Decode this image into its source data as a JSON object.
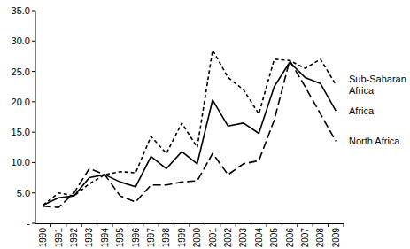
{
  "chart_data": {
    "type": "line",
    "categories": [
      "1990",
      "1991",
      "1992",
      "1993",
      "1994",
      "1995",
      "1996",
      "1997",
      "1998",
      "1999",
      "2000",
      "2001",
      "2002",
      "2003",
      "2004",
      "2005",
      "2006",
      "2007",
      "2008",
      "2009"
    ],
    "series": [
      {
        "name": "Sub-Saharan Africa",
        "color": "#000000",
        "line_style": "short_dash",
        "values": [
          3.0,
          5.0,
          4.5,
          6.5,
          8.0,
          8.5,
          8.3,
          14.3,
          11.5,
          16.5,
          12.5,
          28.5,
          24.0,
          22.0,
          18.0,
          27.0,
          26.8,
          25.5,
          27.0,
          22.8
        ]
      },
      {
        "name": "Africa",
        "color": "#000000",
        "line_style": "solid",
        "values": [
          3.0,
          4.2,
          4.5,
          7.5,
          8.0,
          6.8,
          6.0,
          11.0,
          9.0,
          11.8,
          9.8,
          20.3,
          16.0,
          16.5,
          14.8,
          22.5,
          26.5,
          24.0,
          23.0,
          18.5
        ]
      },
      {
        "name": "North Africa",
        "color": "#000000",
        "line_style": "long_dash",
        "values": [
          2.8,
          2.6,
          5.0,
          9.0,
          8.0,
          4.5,
          3.5,
          6.3,
          6.3,
          6.8,
          7.0,
          11.5,
          8.0,
          9.8,
          10.3,
          17.0,
          26.8,
          22.5,
          18.0,
          13.5
        ]
      }
    ],
    "ylim": [
      0,
      35
    ],
    "yticks": [
      {
        "value": 0,
        "label": "-"
      },
      {
        "value": 5,
        "label": "5.0"
      },
      {
        "value": 10,
        "label": "10.0"
      },
      {
        "value": 15,
        "label": "15.0"
      },
      {
        "value": 20,
        "label": "20.0"
      },
      {
        "value": 25,
        "label": "25.0"
      },
      {
        "value": 30,
        "label": "30.0"
      },
      {
        "value": 35,
        "label": "35.0"
      }
    ],
    "grid": false
  }
}
